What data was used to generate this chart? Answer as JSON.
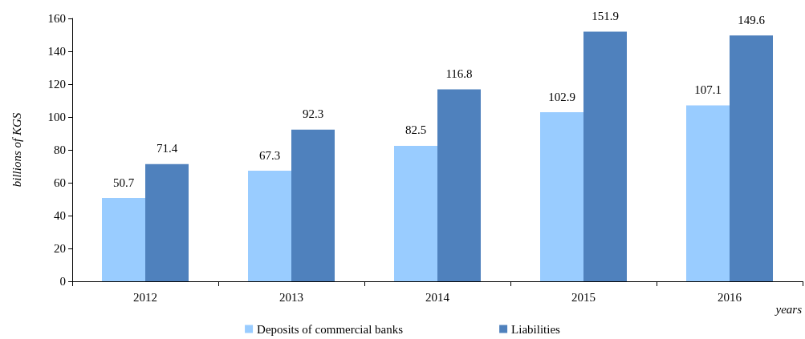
{
  "chart_data": {
    "type": "bar",
    "ylabel": "billions of KGS",
    "xlabel": "years",
    "categories": [
      "2012",
      "2013",
      "2014",
      "2015",
      "2016"
    ],
    "series": [
      {
        "name": "Deposits of commercial banks",
        "color": "#99ccff",
        "values": [
          50.7,
          67.3,
          82.5,
          102.9,
          107.1
        ]
      },
      {
        "name": "Liabilities",
        "color": "#4f81bd",
        "values": [
          71.4,
          92.3,
          116.8,
          151.9,
          149.6
        ]
      }
    ],
    "ylim": [
      0,
      160
    ],
    "yticks": [
      0,
      20,
      40,
      60,
      80,
      100,
      120,
      140,
      160
    ],
    "data_labels": true,
    "legend": "bottom",
    "grid": false
  }
}
